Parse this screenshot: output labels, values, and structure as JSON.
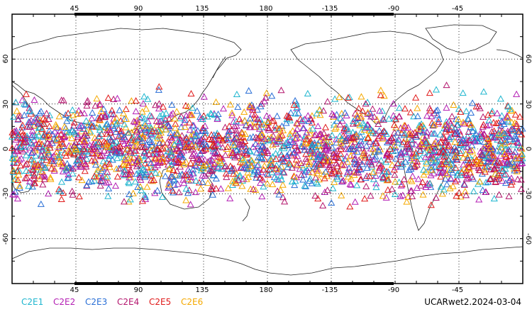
{
  "map": {
    "top_lon_labels": [
      "45",
      "90",
      "135",
      "180",
      "-135",
      "-90",
      "-45"
    ],
    "bottom_lon_labels": [
      "45",
      "90",
      "135",
      "180",
      "-135",
      "-90",
      "-45"
    ],
    "left_lat_labels": [
      "60",
      "30",
      "0",
      "-30",
      "-60"
    ],
    "right_lat_labels": [
      "60",
      "30",
      "0",
      "-30",
      "-60"
    ],
    "lon_range": [
      0,
      360
    ],
    "lat_range": [
      -90,
      90
    ],
    "grid": "dotted",
    "marker_shape": "triangle",
    "observation_lat_band": [
      -45,
      45
    ]
  },
  "legend": {
    "items": [
      {
        "label": "C2E1",
        "color": "#1fb6cf"
      },
      {
        "label": "C2E2",
        "color": "#b41fb4"
      },
      {
        "label": "C2E3",
        "color": "#2a6fd6"
      },
      {
        "label": "C2E4",
        "color": "#b4166e"
      },
      {
        "label": "C2E5",
        "color": "#e01a1a"
      },
      {
        "label": "C2E6",
        "color": "#f5a900"
      }
    ]
  },
  "stamp": {
    "text": "UCARwet2.2024-03-04"
  }
}
